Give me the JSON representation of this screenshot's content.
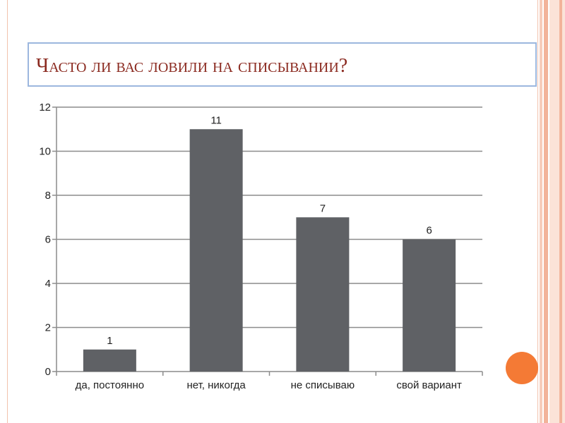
{
  "slide": {
    "title": "Часто ли вас ловили на списывании?"
  },
  "colors": {
    "bar": "#5f6165",
    "title": "#8b2a20",
    "title_border": "#9cb7de",
    "accent_circle": "#f47a35",
    "grid": "#8c8c8c"
  },
  "chart_data": {
    "type": "bar",
    "categories": [
      "да, постоянно",
      "нет, никогда",
      "не списываю",
      "свой вариант"
    ],
    "values": [
      1,
      11,
      7,
      6
    ],
    "data_labels": [
      "1",
      "11",
      "7",
      "6"
    ],
    "ylim": [
      0,
      12
    ],
    "yticks": [
      "0",
      "2",
      "4",
      "6",
      "8",
      "10",
      "12"
    ],
    "grid": true,
    "legend": "none"
  }
}
